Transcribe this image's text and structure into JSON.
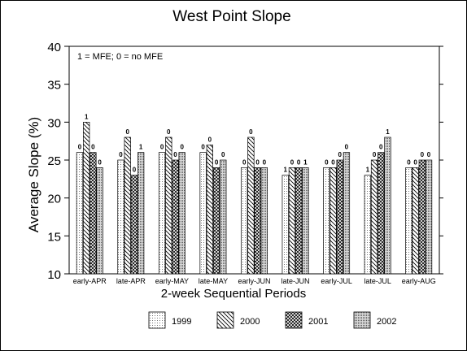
{
  "chart_data": {
    "type": "bar",
    "title": "West Point Slope",
    "xlabel": "2-week Sequential Periods",
    "ylabel": "Average Slope (%)",
    "annotation": "1 = MFE; 0 = no MFE",
    "ylim": [
      10,
      40
    ],
    "yticks": [
      10,
      15,
      20,
      25,
      30,
      35,
      40
    ],
    "grid": false,
    "legend_position": "bottom",
    "categories": [
      "early-APR",
      "late-APR",
      "early-MAY",
      "late-MAY",
      "early-JUN",
      "late-JUN",
      "early-JUL",
      "late-JUL",
      "early-AUG"
    ],
    "series": [
      {
        "name": "1999",
        "pattern": "dots",
        "values": [
          26,
          25,
          26,
          26,
          24,
          23,
          24,
          23,
          24
        ],
        "labels": [
          "0",
          "0",
          "0",
          "0",
          "0",
          "1",
          "0",
          "1",
          "0"
        ]
      },
      {
        "name": "2000",
        "pattern": "diagonal",
        "values": [
          30,
          28,
          28,
          27,
          28,
          24,
          24,
          25,
          24
        ],
        "labels": [
          "1",
          "0",
          "0",
          "0",
          "0",
          "0",
          "0",
          "0",
          "0"
        ]
      },
      {
        "name": "2001",
        "pattern": "crosshatch",
        "values": [
          26,
          23,
          25,
          24,
          24,
          24,
          25,
          26,
          25
        ],
        "labels": [
          "0",
          "0",
          "0",
          "0",
          "0",
          "0",
          "0",
          "0",
          "0"
        ]
      },
      {
        "name": "2002",
        "pattern": "dense",
        "values": [
          24,
          26,
          26,
          25,
          24,
          24,
          26,
          28,
          25
        ],
        "labels": [
          "0",
          "1",
          "0",
          "0",
          "0",
          "1",
          "0",
          "1",
          "0"
        ]
      }
    ]
  }
}
